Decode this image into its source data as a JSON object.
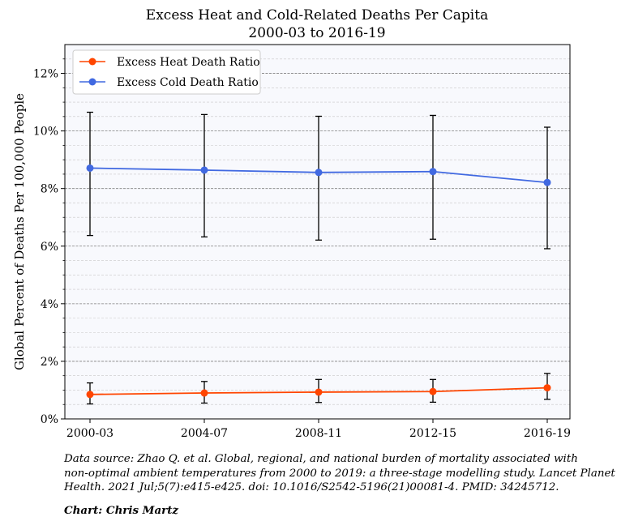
{
  "chart_data": {
    "type": "line",
    "title_line1": "Excess Heat and Cold-Related Deaths Per Capita",
    "title_line2": "2000-03 to 2016-19",
    "xlabel": "",
    "ylabel": "Global Percent of Deaths Per 100,000 People",
    "categories": [
      "2000-03",
      "2004-07",
      "2008-11",
      "2012-15",
      "2016-19"
    ],
    "ylim": [
      0,
      13
    ],
    "yticks": [
      0,
      2,
      4,
      6,
      8,
      10,
      12
    ],
    "ytick_labels": [
      "0%",
      "2%",
      "4%",
      "6%",
      "8%",
      "10%",
      "12%"
    ],
    "grid": true,
    "legend_position": "top-left",
    "series": [
      {
        "name": "Excess Heat Death Ratio",
        "color": "#ff4500",
        "values": [
          0.85,
          0.9,
          0.93,
          0.95,
          1.08
        ],
        "err_low": [
          0.52,
          0.55,
          0.57,
          0.58,
          0.68
        ],
        "err_high": [
          1.25,
          1.3,
          1.37,
          1.37,
          1.58
        ]
      },
      {
        "name": "Excess Cold Death Ratio",
        "color": "#4169e1",
        "values": [
          8.71,
          8.64,
          8.56,
          8.59,
          8.21
        ],
        "err_low": [
          6.37,
          6.32,
          6.21,
          6.24,
          5.91
        ],
        "err_high": [
          10.65,
          10.57,
          10.51,
          10.54,
          10.13
        ]
      }
    ]
  },
  "caption": {
    "source_line1": "Data source: Zhao Q. et al. Global, regional, and national burden of mortality associated with",
    "source_line2": "non-optimal ambient temperatures from 2000 to 2019: a three-stage modelling study. Lancet Planet",
    "source_line3": "Health. 2021 Jul;5(7):e415-e425. doi: 10.1016/S2542-5196(21)00081-4. PMID: 34245712.",
    "credit": "Chart: Chris Martz"
  }
}
